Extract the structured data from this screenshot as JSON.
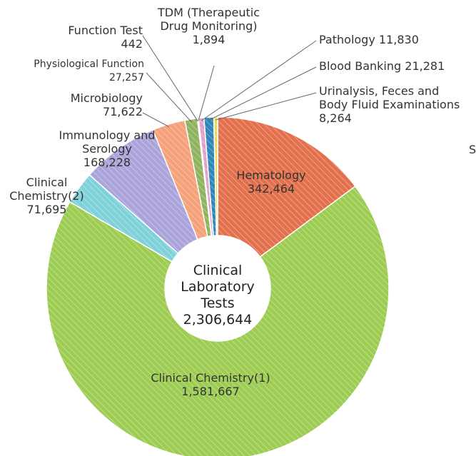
{
  "chart_data": {
    "type": "donut",
    "center_label": "Clinical Laboratory Tests",
    "total": 2306644,
    "total_label": "2,306,644",
    "partial_text": "S",
    "categories": [
      "Hematology",
      "Clinical Chemistry(1)",
      "Clinical Chemistry(2)",
      "Immunology and Serology",
      "Microbiology",
      "Physiological Function",
      "Function Test",
      "TDM (Therapeutic Drug Monitoring)",
      "Pathology",
      "Blood Banking",
      "Urinalysis, Feces and Body Fluid Examinations"
    ],
    "values": [
      342464,
      1581667,
      71695,
      168228,
      71622,
      27257,
      442,
      1894,
      11830,
      21281,
      8264
    ],
    "value_labels": [
      "342,464",
      "1,581,667",
      "71,695",
      "168,228",
      "71,622",
      "27,257",
      "442",
      "1,894",
      "11,830",
      "21,281",
      "8,264"
    ],
    "colors": [
      "#e2704c",
      "#9dcc52",
      "#80d2da",
      "#aaa4da",
      "#f5a17a",
      "#8fb35e",
      "#d8d8d8",
      "#eab2da",
      "#e4a0c8",
      "#2f86b8",
      "#e8d85a"
    ]
  }
}
